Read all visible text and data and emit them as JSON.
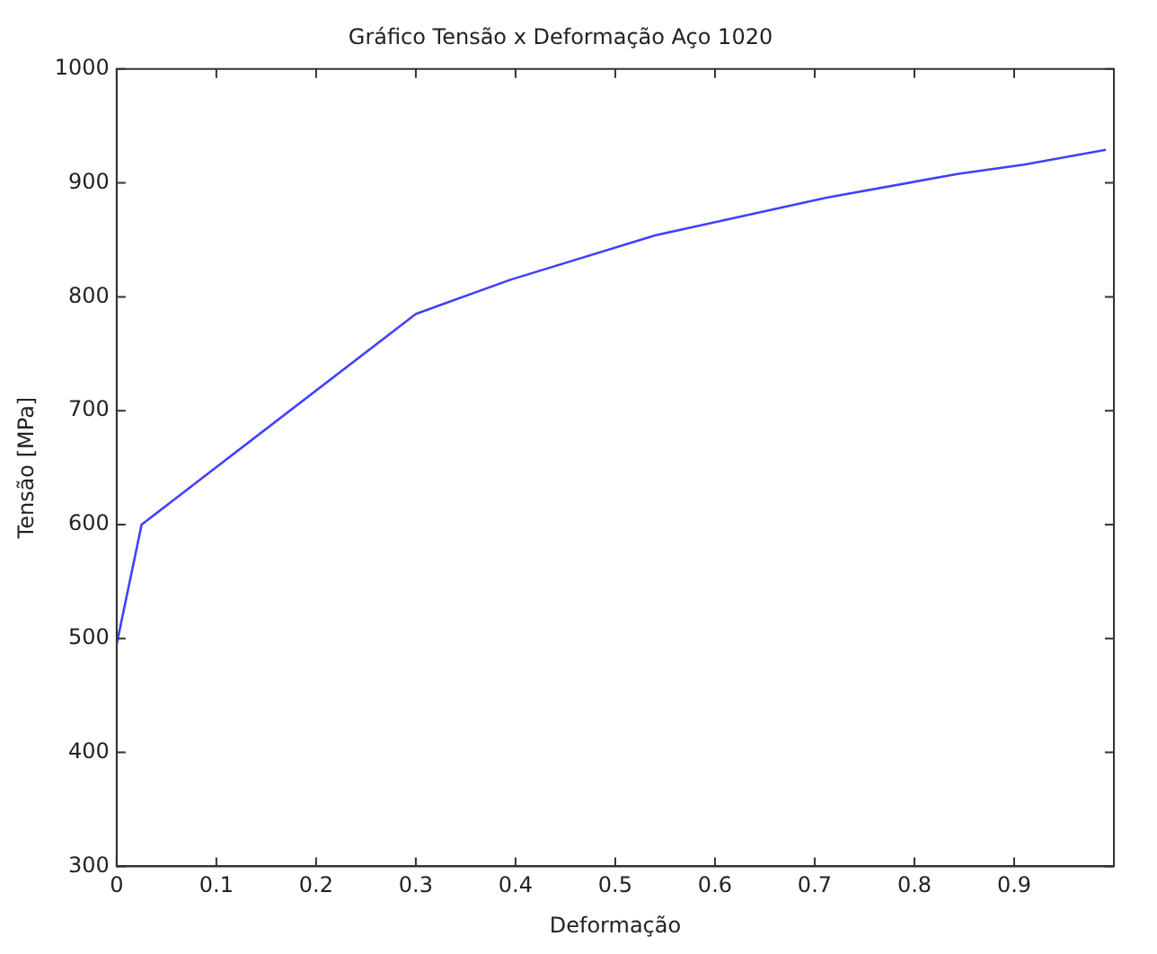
{
  "chart_data": {
    "type": "line",
    "title": "Gráfico Tensão x Deformação Aço 1020",
    "xlabel": "Deformação",
    "ylabel": "Tensão [MPa]",
    "x": [
      0,
      0.025,
      0.3,
      0.395,
      0.54,
      0.712,
      0.844,
      0.91,
      0.992
    ],
    "series": [
      {
        "color": "#4040ff",
        "values": [
          495,
          600,
          785,
          815,
          854,
          887,
          908,
          916,
          929
        ]
      }
    ],
    "xlim": [
      0,
      1
    ],
    "xticks": [
      0,
      0.1,
      0.2,
      0.3,
      0.4,
      0.5,
      0.6,
      0.7,
      0.8,
      0.9
    ],
    "ylim": [
      300,
      1000
    ],
    "yticks": [
      300,
      400,
      500,
      600,
      700,
      800,
      900,
      1000
    ],
    "grid": false,
    "legend": false,
    "marker": "none",
    "line_style": "solid"
  }
}
